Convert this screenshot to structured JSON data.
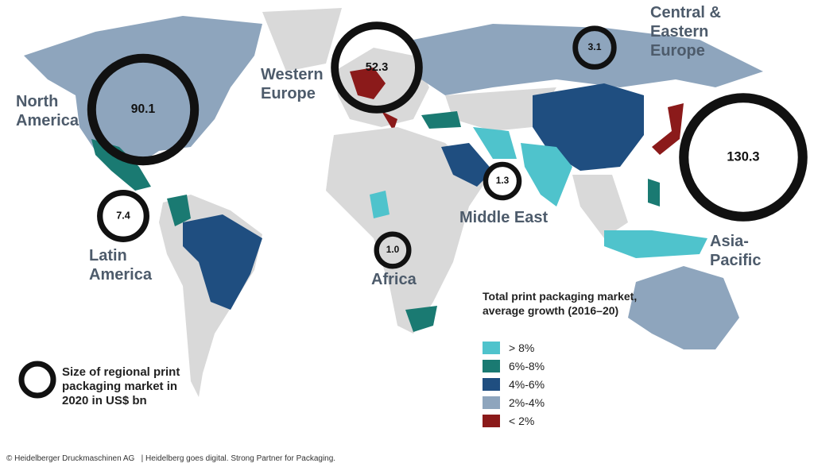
{
  "title_regions": [
    {
      "name": "North America",
      "value": 90.1
    },
    {
      "name": "Western Europe",
      "value": 52.3
    },
    {
      "name": "Central & Eastern Europe",
      "value": 3.1
    },
    {
      "name": "Middle East",
      "value": 1.3
    },
    {
      "name": "Asia-Pacific",
      "value": 130.3
    },
    {
      "name": "Latin America",
      "value": 7.4
    },
    {
      "name": "Africa",
      "value": 1,
      "value_label": "1.0"
    }
  ],
  "size_legend": "Size of regional print packaging market in 2020 in US$ bn",
  "growth_legend": {
    "title": "Total print packaging market, average growth (2016–20)",
    "items": [
      {
        "label": "> 8%",
        "color": "#4fc3cc"
      },
      {
        "label": "6%-8%",
        "color": "#1a7a72"
      },
      {
        "label": "4%-6%",
        "color": "#1f4e80"
      },
      {
        "label": "2%-4%",
        "color": "#8ea5bd"
      },
      {
        "label": "< 2%",
        "color": "#8b1a1a"
      }
    ]
  },
  "footer": "© Heidelberger Druckmaschinen AG   | Heidelberg goes digital. Strong Partner for Packaging."
}
